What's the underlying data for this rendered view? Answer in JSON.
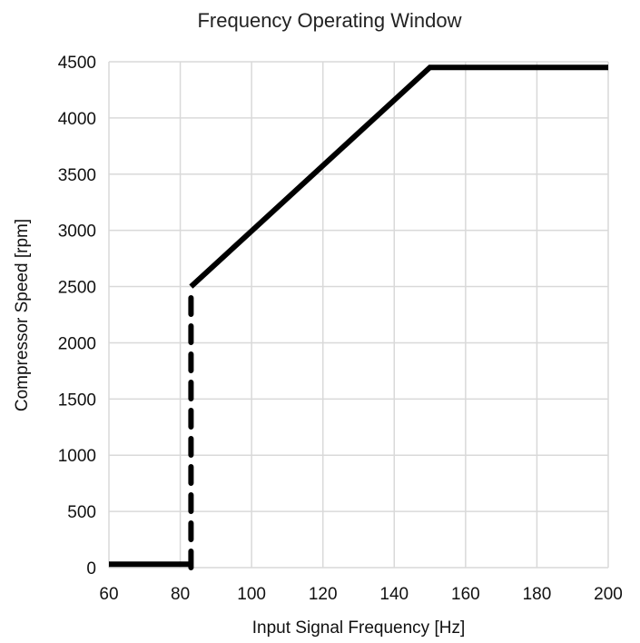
{
  "chart_data": {
    "type": "line",
    "title": "Frequency Operating Window",
    "xlabel": "Input Signal Frequency [Hz]",
    "ylabel": "Compressor Speed [rpm]",
    "xlim": [
      60,
      200
    ],
    "ylim": [
      0,
      4500
    ],
    "xticks": [
      "60",
      "80",
      "100",
      "120",
      "140",
      "160",
      "180",
      "200"
    ],
    "yticks": [
      "0",
      "500",
      "1000",
      "1500",
      "2000",
      "2500",
      "3000",
      "3500",
      "4000",
      "4500"
    ],
    "grid": "vertical and horizontal",
    "line_color": "#000000",
    "series": [
      {
        "style": "solid",
        "x": [
          60,
          83
        ],
        "y": [
          30,
          30
        ]
      },
      {
        "style": "dashed",
        "x": [
          83,
          83
        ],
        "y": [
          0,
          2500
        ]
      },
      {
        "style": "solid",
        "x": [
          83,
          150,
          200
        ],
        "y": [
          2500,
          4450,
          4450
        ]
      }
    ]
  }
}
